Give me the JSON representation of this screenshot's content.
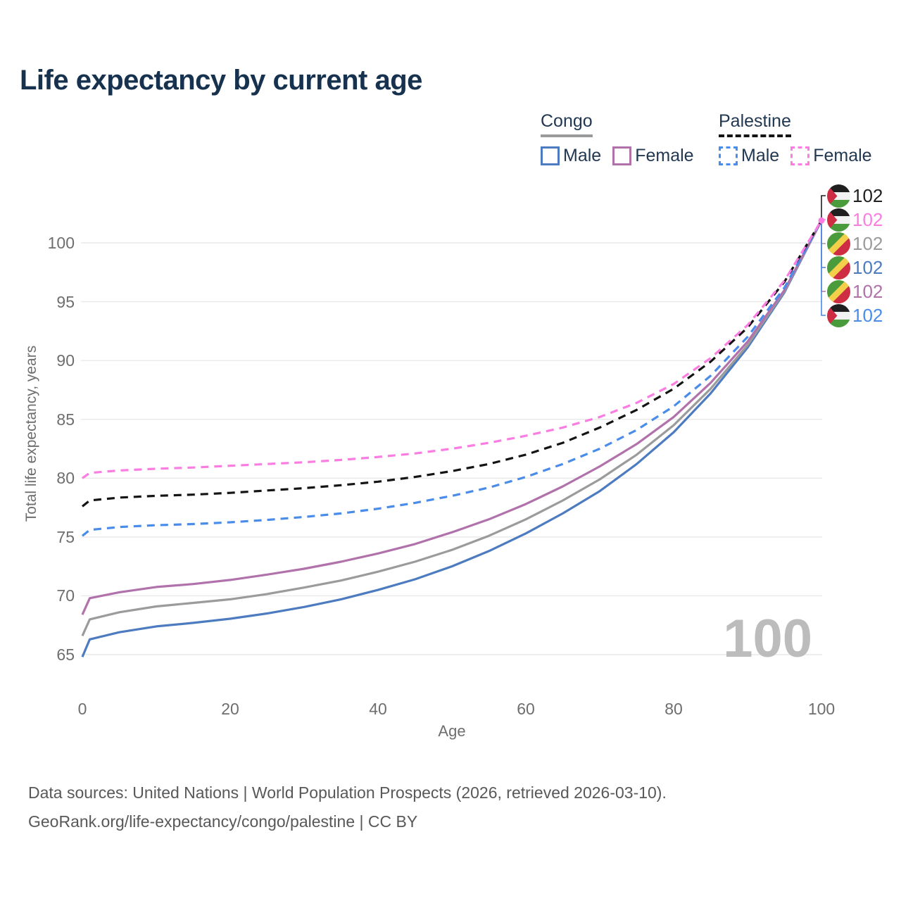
{
  "title": "Life expectancy by current age",
  "legend": {
    "groups": [
      {
        "label": "Congo",
        "line_style": "solid",
        "underline_color": "#9a9a9a",
        "items": [
          {
            "label": "Male",
            "color": "#4d7bc0"
          },
          {
            "label": "Female",
            "color": "#b172ab"
          }
        ]
      },
      {
        "label": "Palestine",
        "line_style": "dashed",
        "underline_color": "#141414",
        "items": [
          {
            "label": "Male",
            "color": "#4a8cea"
          },
          {
            "label": "Female",
            "color": "#fb7de2"
          }
        ]
      }
    ]
  },
  "chart_data": {
    "type": "line",
    "title": "Life expectancy by current age",
    "xlabel": "Age",
    "ylabel": "Total life expectancy, years",
    "xlim": [
      0,
      100
    ],
    "ylim": [
      63,
      103
    ],
    "xticks": [
      0,
      20,
      40,
      60,
      80,
      100
    ],
    "yticks": [
      65,
      70,
      75,
      80,
      85,
      90,
      95,
      100
    ],
    "grid": "horizontal",
    "legend_position": "top-right",
    "x": [
      0,
      1,
      5,
      10,
      15,
      20,
      25,
      30,
      35,
      40,
      45,
      50,
      55,
      60,
      65,
      70,
      75,
      80,
      85,
      90,
      95,
      100
    ],
    "series": [
      {
        "name": "Congo Male",
        "color": "#4d7bc0",
        "dash": "solid",
        "values": [
          64.8,
          66.3,
          66.9,
          67.4,
          67.7,
          68.05,
          68.5,
          69.05,
          69.7,
          70.5,
          71.4,
          72.5,
          73.8,
          75.3,
          77.0,
          78.9,
          81.2,
          83.9,
          87.2,
          91.1,
          95.8,
          101.9
        ]
      },
      {
        "name": "Congo Both sexes",
        "color": "#9b9b9b",
        "dash": "solid",
        "values": [
          66.6,
          68.0,
          68.6,
          69.1,
          69.4,
          69.7,
          70.15,
          70.7,
          71.3,
          72.05,
          72.9,
          73.9,
          75.1,
          76.5,
          78.1,
          79.9,
          82.0,
          84.5,
          87.6,
          91.3,
          95.9,
          101.9
        ]
      },
      {
        "name": "Congo Female",
        "color": "#b172ab",
        "dash": "solid",
        "values": [
          68.4,
          69.8,
          70.3,
          70.75,
          71.0,
          71.35,
          71.8,
          72.3,
          72.9,
          73.6,
          74.4,
          75.4,
          76.5,
          77.8,
          79.3,
          81.0,
          82.9,
          85.2,
          88.1,
          91.6,
          96.0,
          101.9
        ]
      },
      {
        "name": "Palestine Male",
        "color": "#4a8cea",
        "dash": "dashed",
        "values": [
          75.1,
          75.6,
          75.85,
          76.0,
          76.1,
          76.25,
          76.45,
          76.7,
          77.0,
          77.4,
          77.9,
          78.5,
          79.2,
          80.1,
          81.2,
          82.5,
          84.1,
          86.1,
          88.7,
          92.0,
          96.2,
          101.9
        ]
      },
      {
        "name": "Palestine Both sexes",
        "color": "#141414",
        "dash": "dashed",
        "values": [
          77.6,
          78.1,
          78.35,
          78.5,
          78.6,
          78.75,
          78.95,
          79.15,
          79.4,
          79.7,
          80.1,
          80.6,
          81.2,
          82.0,
          83.0,
          84.3,
          85.8,
          87.6,
          89.9,
          92.8,
          96.7,
          101.9
        ]
      },
      {
        "name": "Palestine Female",
        "color": "#fb7de2",
        "dash": "dashed",
        "values": [
          80.0,
          80.45,
          80.65,
          80.8,
          80.9,
          81.05,
          81.2,
          81.35,
          81.55,
          81.8,
          82.1,
          82.5,
          83.0,
          83.6,
          84.3,
          85.2,
          86.4,
          88.0,
          90.2,
          93.0,
          96.8,
          101.9
        ]
      }
    ]
  },
  "end_labels": [
    {
      "value": "102",
      "flag": "palestine",
      "color": "#1f1f1f",
      "series": "Palestine Both sexes"
    },
    {
      "value": "102",
      "flag": "palestine",
      "color": "#fb7de2",
      "series": "Palestine Female"
    },
    {
      "value": "102",
      "flag": "congo",
      "color": "#9b9b9b",
      "series": "Congo Both sexes"
    },
    {
      "value": "102",
      "flag": "congo",
      "color": "#4d7bc0",
      "series": "Congo Male"
    },
    {
      "value": "102",
      "flag": "congo",
      "color": "#b172ab",
      "series": "Congo Female"
    },
    {
      "value": "102",
      "flag": "palestine",
      "color": "#4a8cea",
      "series": "Palestine Male"
    }
  ],
  "flags": {
    "palestine": {
      "black": "#1f1f1f",
      "white": "#f2f2f2",
      "green": "#4a9b3b",
      "red": "#cf2d44"
    },
    "congo": {
      "green": "#4a9b3b",
      "yellow": "#f3cf4a",
      "red": "#cf2d44"
    }
  },
  "watermark": "100",
  "footer": {
    "line1": "Data sources: United Nations | World Population Prospects (2026, retrieved 2026-03-10).",
    "line2": "GeoRank.org/life-expectancy/congo/palestine | CC BY"
  },
  "colors": {
    "title": "#17324e",
    "legend_text": "#223852",
    "axis_text": "#6e6e6e",
    "gridline": "#e9e9e9",
    "watermark": "#bcbcbc",
    "footer_text": "#57585a"
  }
}
